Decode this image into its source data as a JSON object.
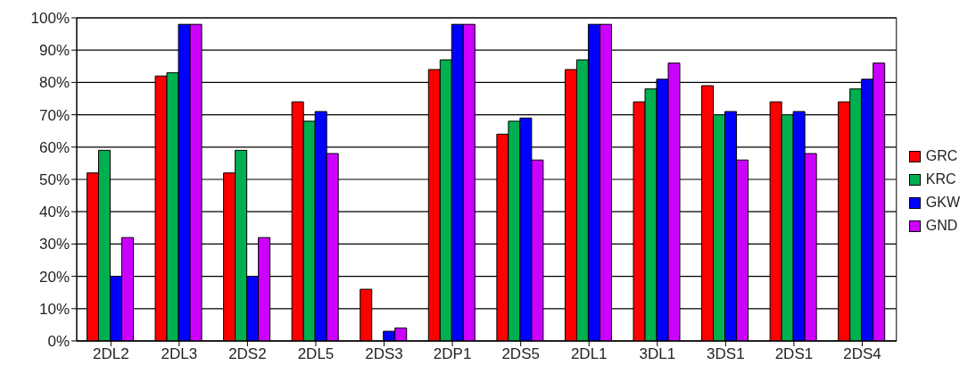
{
  "chart_data": {
    "type": "bar",
    "categories": [
      "2DL2",
      "2DL3",
      "2DS2",
      "2DL5",
      "2DS3",
      "2DP1",
      "2DS5",
      "2DL1",
      "3DL1",
      "3DS1",
      "2DS1",
      "2DS4"
    ],
    "series": [
      {
        "name": "GRC",
        "color": "#ff0000",
        "values": [
          52,
          82,
          52,
          74,
          16,
          84,
          64,
          84,
          74,
          79,
          74,
          74
        ]
      },
      {
        "name": "KRC",
        "color": "#00b050",
        "values": [
          59,
          83,
          59,
          68,
          0,
          87,
          68,
          87,
          78,
          70,
          70,
          78
        ]
      },
      {
        "name": "GKW",
        "color": "#0000ff",
        "values": [
          20,
          98,
          20,
          71,
          3,
          98,
          69,
          98,
          81,
          71,
          71,
          81
        ]
      },
      {
        "name": "GND",
        "color": "#cc00ff",
        "values": [
          32,
          98,
          32,
          58,
          4,
          98,
          56,
          98,
          86,
          56,
          58,
          86
        ]
      }
    ],
    "ylim": [
      0,
      100
    ],
    "yticks": [
      {
        "value": 0,
        "label": "0%"
      },
      {
        "value": 10,
        "label": "10%"
      },
      {
        "value": 20,
        "label": "20%"
      },
      {
        "value": 30,
        "label": "30%"
      },
      {
        "value": 40,
        "label": "40%"
      },
      {
        "value": 50,
        "label": "50%"
      },
      {
        "value": 60,
        "label": "60%"
      },
      {
        "value": 70,
        "label": "70%"
      },
      {
        "value": 80,
        "label": "80%"
      },
      {
        "value": 90,
        "label": "90%"
      },
      {
        "value": 100,
        "label": "100%"
      }
    ],
    "grid": "y",
    "legend": "right"
  }
}
